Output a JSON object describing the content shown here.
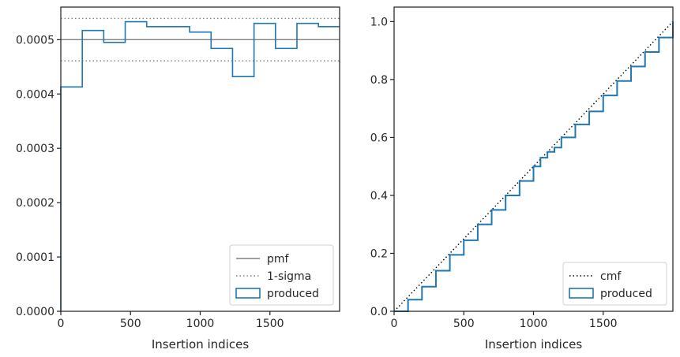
{
  "chart_data": [
    {
      "type": "step-histogram",
      "xlabel": "Insertion indices",
      "ylabel": "",
      "xlim": [
        0,
        2000
      ],
      "ylim": [
        0,
        0.00056
      ],
      "xticks": [
        0,
        500,
        1000,
        1500
      ],
      "xtick_labels": [
        "0",
        "500",
        "1000",
        "1500"
      ],
      "yticks": [
        0,
        0.0001,
        0.0002,
        0.0003,
        0.0004,
        0.0005
      ],
      "ytick_labels": [
        "0.0000",
        "0.0001",
        "0.0002",
        "0.0003",
        "0.0004",
        "0.0005"
      ],
      "grid": false,
      "legend_position": "lower-right",
      "reference_lines": [
        {
          "name": "pmf",
          "style": "solid",
          "color": "#808080",
          "y": 0.0005
        },
        {
          "name": "1-sigma",
          "style": "dotted",
          "color": "#808080",
          "y": 0.000539
        },
        {
          "name": "1-sigma",
          "style": "dotted",
          "color": "#808080",
          "y": 0.000461
        }
      ],
      "series": [
        {
          "name": "produced",
          "color": "#1f77b4",
          "bin_edges": [
            0,
            154,
            308,
            462,
            616,
            770,
            924,
            1078,
            1232,
            1386,
            1540,
            1694,
            1848,
            2000
          ],
          "values": [
            0.000413,
            0.000517,
            0.000495,
            0.000533,
            0.000524,
            0.000524,
            0.000514,
            0.000484,
            0.000432,
            0.00053,
            0.000484,
            0.00053,
            0.000524
          ]
        }
      ],
      "legend": [
        {
          "label": "pmf",
          "style": "solid",
          "color": "#808080"
        },
        {
          "label": "1-sigma",
          "style": "dotted",
          "color": "#808080"
        },
        {
          "label": "produced",
          "style": "box",
          "color": "#1f77b4"
        }
      ]
    },
    {
      "type": "line",
      "xlabel": "Insertion indices",
      "ylabel": "",
      "xlim": [
        0,
        2000
      ],
      "ylim": [
        0,
        1.05
      ],
      "xticks": [
        0,
        500,
        1000,
        1500
      ],
      "xtick_labels": [
        "0",
        "500",
        "1000",
        "1500"
      ],
      "yticks": [
        0,
        0.2,
        0.4,
        0.6,
        0.8,
        1.0
      ],
      "ytick_labels": [
        "0.0",
        "0.2",
        "0.4",
        "0.6",
        "0.8",
        "1.0"
      ],
      "grid": false,
      "legend_position": "lower-right",
      "series": [
        {
          "name": "cmf",
          "style": "dotted",
          "color": "#000000",
          "x": [
            0,
            2000
          ],
          "y": [
            0,
            1.0
          ]
        },
        {
          "name": "produced",
          "style": "step",
          "color": "#1f77b4",
          "x": [
            0,
            100,
            200,
            300,
            400,
            500,
            600,
            700,
            800,
            900,
            1000,
            1050,
            1100,
            1150,
            1200,
            1300,
            1400,
            1500,
            1600,
            1700,
            1800,
            1900,
            2000
          ],
          "y": [
            0.0,
            0.04,
            0.085,
            0.14,
            0.195,
            0.245,
            0.3,
            0.35,
            0.4,
            0.45,
            0.5,
            0.53,
            0.55,
            0.565,
            0.6,
            0.645,
            0.69,
            0.745,
            0.795,
            0.845,
            0.895,
            0.945,
            1.0
          ]
        }
      ],
      "legend": [
        {
          "label": "cmf",
          "style": "dotted",
          "color": "#000000"
        },
        {
          "label": "produced",
          "style": "box",
          "color": "#1f77b4"
        }
      ]
    }
  ]
}
